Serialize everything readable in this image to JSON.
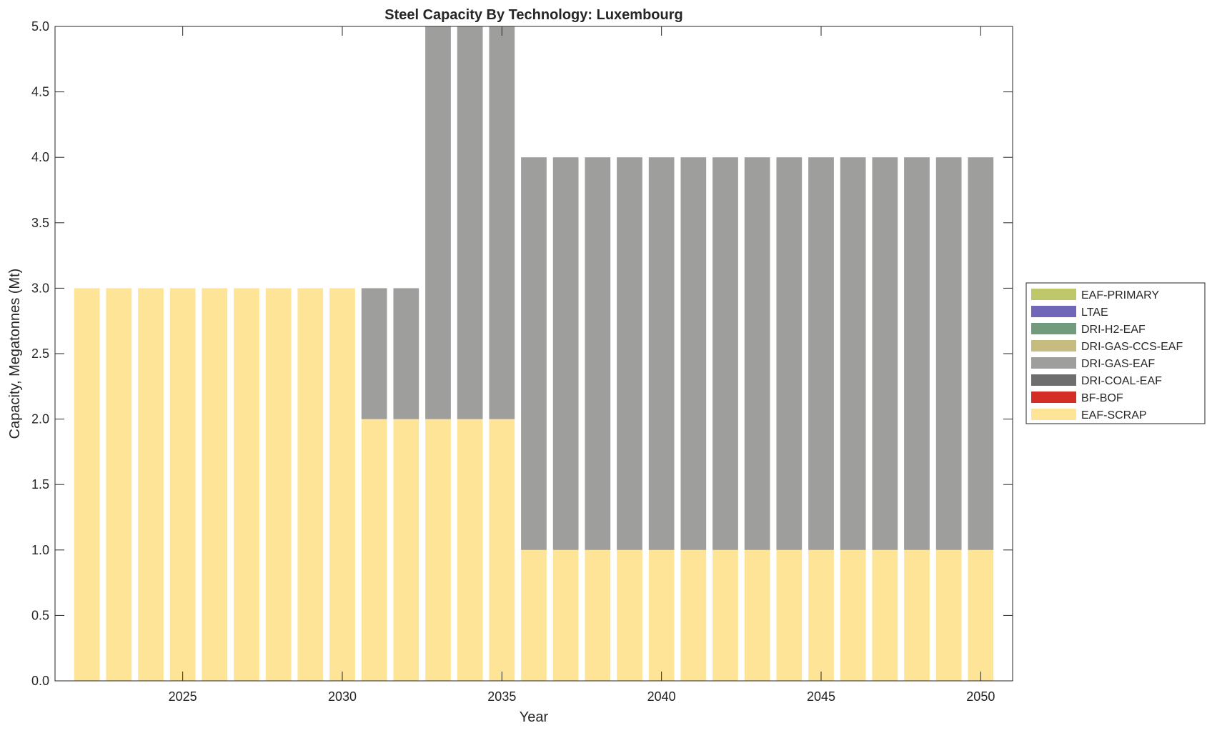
{
  "chart_data": {
    "type": "bar",
    "stacked": true,
    "title": "Steel Capacity By Technology: Luxembourg",
    "xlabel": "Year",
    "ylabel": "Capacity, Megatonnes (Mt)",
    "xlim": [
      2021,
      2051
    ],
    "ylim": [
      0,
      5
    ],
    "xticks": [
      2025,
      2030,
      2035,
      2040,
      2045,
      2050
    ],
    "yticks": [
      "0.0",
      "0.5",
      "1.0",
      "1.5",
      "2.0",
      "2.5",
      "3.0",
      "3.5",
      "4.0",
      "4.5",
      "5.0"
    ],
    "grid": false,
    "legend_position": "right",
    "x": [
      2022,
      2023,
      2024,
      2025,
      2026,
      2027,
      2028,
      2029,
      2030,
      2031,
      2032,
      2033,
      2034,
      2035,
      2036,
      2037,
      2038,
      2039,
      2040,
      2041,
      2042,
      2043,
      2044,
      2045,
      2046,
      2047,
      2048,
      2049,
      2050
    ],
    "series": [
      {
        "name": "EAF-SCRAP",
        "color": "#FEE496",
        "values": [
          3,
          3,
          3,
          3,
          3,
          3,
          3,
          3,
          3,
          2,
          2,
          2,
          2,
          2,
          1,
          1,
          1,
          1,
          1,
          1,
          1,
          1,
          1,
          1,
          1,
          1,
          1,
          1,
          1
        ]
      },
      {
        "name": "BF-BOF",
        "color": "#D42D26",
        "values": [
          0,
          0,
          0,
          0,
          0,
          0,
          0,
          0,
          0,
          0,
          0,
          0,
          0,
          0,
          0,
          0,
          0,
          0,
          0,
          0,
          0,
          0,
          0,
          0,
          0,
          0,
          0,
          0,
          0
        ]
      },
      {
        "name": "DRI-COAL-EAF",
        "color": "#6E6E6E",
        "values": [
          0,
          0,
          0,
          0,
          0,
          0,
          0,
          0,
          0,
          0,
          0,
          0,
          0,
          0,
          0,
          0,
          0,
          0,
          0,
          0,
          0,
          0,
          0,
          0,
          0,
          0,
          0,
          0,
          0
        ]
      },
      {
        "name": "DRI-GAS-EAF",
        "color": "#9E9E9D",
        "values": [
          0,
          0,
          0,
          0,
          0,
          0,
          0,
          0,
          0,
          1,
          1,
          3,
          3,
          3,
          3,
          3,
          3,
          3,
          3,
          3,
          3,
          3,
          3,
          3,
          3,
          3,
          3,
          3,
          3
        ]
      },
      {
        "name": "DRI-GAS-CCS-EAF",
        "color": "#C6BC80",
        "values": [
          0,
          0,
          0,
          0,
          0,
          0,
          0,
          0,
          0,
          0,
          0,
          0,
          0,
          0,
          0,
          0,
          0,
          0,
          0,
          0,
          0,
          0,
          0,
          0,
          0,
          0,
          0,
          0,
          0
        ]
      },
      {
        "name": "DRI-H2-EAF",
        "color": "#729A7D",
        "values": [
          0,
          0,
          0,
          0,
          0,
          0,
          0,
          0,
          0,
          0,
          0,
          0,
          0,
          0,
          0,
          0,
          0,
          0,
          0,
          0,
          0,
          0,
          0,
          0,
          0,
          0,
          0,
          0,
          0
        ]
      },
      {
        "name": "LTAE",
        "color": "#7167B8",
        "values": [
          0,
          0,
          0,
          0,
          0,
          0,
          0,
          0,
          0,
          0,
          0,
          0,
          0,
          0,
          0,
          0,
          0,
          0,
          0,
          0,
          0,
          0,
          0,
          0,
          0,
          0,
          0,
          0,
          0
        ]
      },
      {
        "name": "EAF-PRIMARY",
        "color": "#BEC76A",
        "values": [
          0,
          0,
          0,
          0,
          0,
          0,
          0,
          0,
          0,
          0,
          0,
          0,
          0,
          0,
          0,
          0,
          0,
          0,
          0,
          0,
          0,
          0,
          0,
          0,
          0,
          0,
          0,
          0,
          0
        ]
      }
    ],
    "legend_order": [
      "EAF-PRIMARY",
      "LTAE",
      "DRI-H2-EAF",
      "DRI-GAS-CCS-EAF",
      "DRI-GAS-EAF",
      "DRI-COAL-EAF",
      "BF-BOF",
      "EAF-SCRAP"
    ]
  }
}
